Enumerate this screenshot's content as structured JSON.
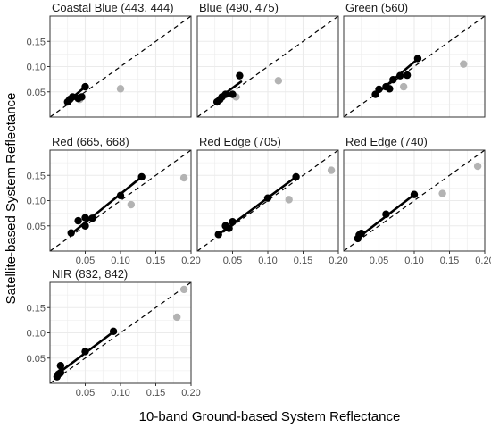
{
  "chart_data": {
    "type": "scatter",
    "xlabel": "10-band Ground-based System Reflectance",
    "ylabel": "Satellite-based System Reflectance",
    "xlim": [
      0.0,
      0.2
    ],
    "ylim": [
      0.0,
      0.2
    ],
    "x_ticks": [
      0.05,
      0.1,
      0.15,
      0.2
    ],
    "x_tick_labels": [
      "0.05",
      "0.10",
      "0.15",
      "0.20"
    ],
    "y_ticks": [
      0.05,
      0.1,
      0.15
    ],
    "y_tick_labels": [
      "0.05",
      "0.10",
      "0.15"
    ],
    "grid": true,
    "reference_line": "1:1 dashed",
    "colors": {
      "included": "#000000",
      "excluded": "#b3b3b3",
      "panel_border": "#333333",
      "grid": "#ebebeb"
    },
    "panels": [
      {
        "title": "Coastal Blue (443, 444)",
        "points": [
          [
            0.025,
            0.03
          ],
          [
            0.028,
            0.035
          ],
          [
            0.032,
            0.04
          ],
          [
            0.04,
            0.037
          ],
          [
            0.045,
            0.04
          ],
          [
            0.05,
            0.06
          ],
          [
            0.042,
            0.035
          ],
          [
            0.1,
            0.056
          ]
        ],
        "excluded": [
          false,
          false,
          false,
          false,
          false,
          false,
          true,
          true
        ],
        "fit": [
          [
            0.025,
            0.031
          ],
          [
            0.05,
            0.06
          ]
        ]
      },
      {
        "title": "Blue (490, 475)",
        "points": [
          [
            0.028,
            0.03
          ],
          [
            0.032,
            0.035
          ],
          [
            0.035,
            0.04
          ],
          [
            0.04,
            0.045
          ],
          [
            0.05,
            0.045
          ],
          [
            0.06,
            0.082
          ],
          [
            0.055,
            0.04
          ],
          [
            0.115,
            0.072
          ]
        ],
        "excluded": [
          false,
          false,
          false,
          false,
          false,
          false,
          true,
          true
        ],
        "fit": [
          [
            0.025,
            0.032
          ],
          [
            0.062,
            0.07
          ]
        ]
      },
      {
        "title": "Green (560)",
        "points": [
          [
            0.045,
            0.045
          ],
          [
            0.05,
            0.055
          ],
          [
            0.06,
            0.06
          ],
          [
            0.065,
            0.056
          ],
          [
            0.07,
            0.074
          ],
          [
            0.08,
            0.082
          ],
          [
            0.09,
            0.083
          ],
          [
            0.105,
            0.116
          ],
          [
            0.085,
            0.06
          ],
          [
            0.17,
            0.105
          ]
        ],
        "excluded": [
          false,
          false,
          false,
          false,
          false,
          false,
          false,
          false,
          true,
          true
        ],
        "fit": [
          [
            0.045,
            0.044
          ],
          [
            0.105,
            0.115
          ]
        ]
      },
      {
        "title": "Red (665, 668)",
        "points": [
          [
            0.03,
            0.036
          ],
          [
            0.04,
            0.06
          ],
          [
            0.05,
            0.05
          ],
          [
            0.05,
            0.066
          ],
          [
            0.06,
            0.065
          ],
          [
            0.1,
            0.11
          ],
          [
            0.13,
            0.147
          ],
          [
            0.115,
            0.092
          ],
          [
            0.19,
            0.145
          ]
        ],
        "excluded": [
          false,
          false,
          false,
          false,
          false,
          false,
          false,
          true,
          true
        ],
        "fit": [
          [
            0.03,
            0.034
          ],
          [
            0.13,
            0.147
          ]
        ]
      },
      {
        "title": "Red Edge (705)",
        "points": [
          [
            0.03,
            0.033
          ],
          [
            0.04,
            0.05
          ],
          [
            0.045,
            0.045
          ],
          [
            0.05,
            0.058
          ],
          [
            0.1,
            0.105
          ],
          [
            0.14,
            0.147
          ],
          [
            0.13,
            0.102
          ],
          [
            0.19,
            0.16
          ]
        ],
        "excluded": [
          false,
          false,
          false,
          false,
          false,
          false,
          true,
          true
        ],
        "fit": [
          [
            0.03,
            0.033
          ],
          [
            0.14,
            0.147
          ]
        ]
      },
      {
        "title": "Red Edge (740)",
        "points": [
          [
            0.02,
            0.025
          ],
          [
            0.022,
            0.032
          ],
          [
            0.025,
            0.035
          ],
          [
            0.06,
            0.073
          ],
          [
            0.1,
            0.112
          ],
          [
            0.14,
            0.114
          ],
          [
            0.19,
            0.168
          ]
        ],
        "excluded": [
          false,
          false,
          false,
          false,
          false,
          true,
          true
        ],
        "fit": [
          [
            0.02,
            0.026
          ],
          [
            0.1,
            0.112
          ]
        ]
      },
      {
        "title": "NIR (832, 842)",
        "points": [
          [
            0.01,
            0.013
          ],
          [
            0.012,
            0.018
          ],
          [
            0.015,
            0.021
          ],
          [
            0.015,
            0.035
          ],
          [
            0.05,
            0.063
          ],
          [
            0.09,
            0.103
          ],
          [
            0.18,
            0.131
          ],
          [
            0.19,
            0.186
          ]
        ],
        "excluded": [
          false,
          false,
          false,
          false,
          false,
          false,
          true,
          true
        ],
        "fit": [
          [
            0.01,
            0.018
          ],
          [
            0.09,
            0.102
          ]
        ]
      }
    ]
  }
}
